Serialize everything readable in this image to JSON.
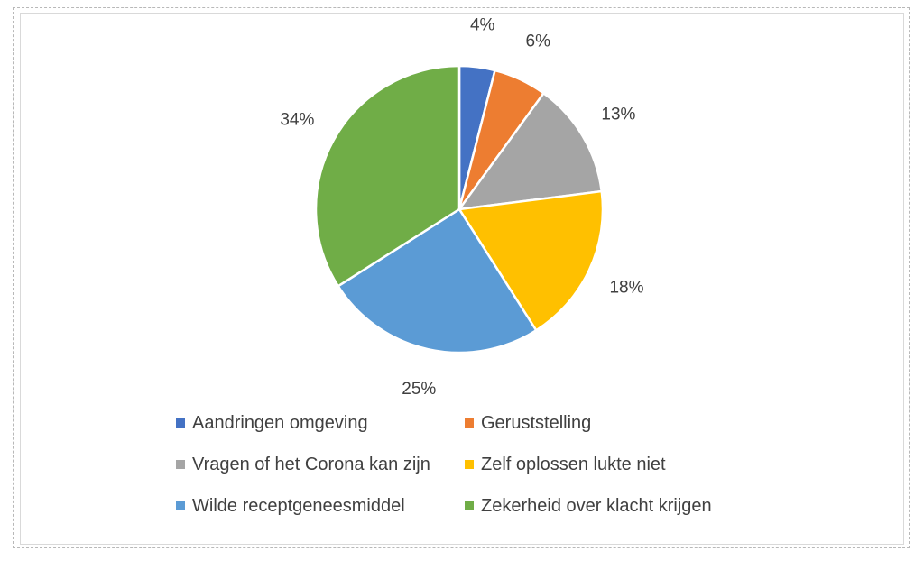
{
  "chart_data": {
    "type": "pie",
    "title": "",
    "categories": [
      "Aandringen omgeving",
      "Geruststelling",
      "Vragen of het Corona kan zijn",
      "Zelf oplossen lukte niet",
      "Wilde receptgeneesmiddel",
      "Zekerheid over klacht krijgen"
    ],
    "values": [
      4,
      6,
      13,
      18,
      25,
      34
    ],
    "labels": [
      "4%",
      "6%",
      "13%",
      "18%",
      "25%",
      "34%"
    ],
    "colors": [
      "#4472C4",
      "#ED7D31",
      "#A5A5A5",
      "#FFC000",
      "#5B9BD5",
      "#70AD47"
    ],
    "legend_position": "bottom"
  }
}
